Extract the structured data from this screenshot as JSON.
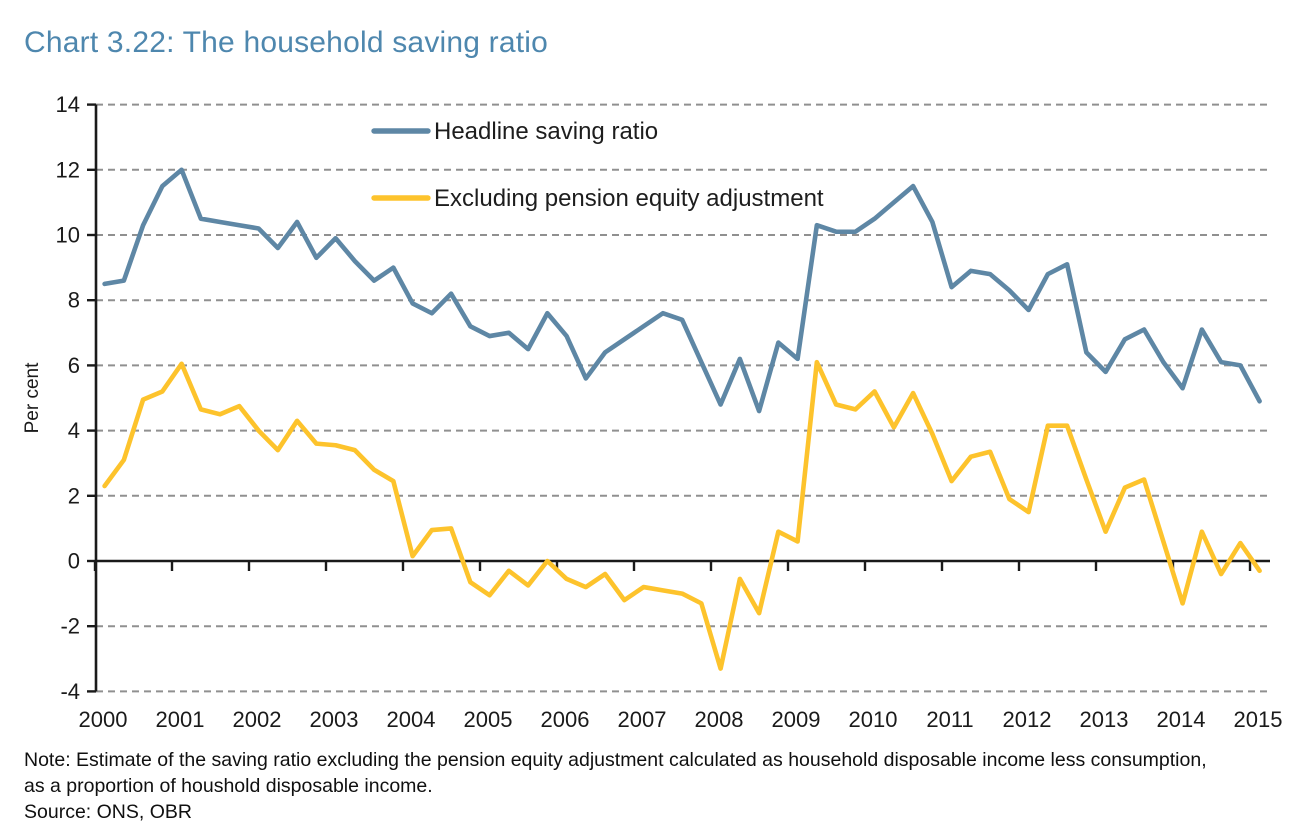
{
  "page": {
    "title": "Chart 3.22: The household saving ratio",
    "note": "Note: Estimate of the saving ratio excluding the pension equity adjustment calculated as household disposable income less consumption, as a proportion of houshold disposable income.",
    "source": "Source: ONS, OBR"
  },
  "chart_data": {
    "type": "line",
    "title": "Chart 3.22: The household saving ratio",
    "xlabel": "",
    "ylabel": "Per cent",
    "ylim": [
      -4,
      14
    ],
    "y_ticks": [
      14,
      12,
      10,
      8,
      6,
      4,
      2,
      0,
      -2,
      -4
    ],
    "x_tick_labels": [
      "2000",
      "2001",
      "2002",
      "2003",
      "2004",
      "2005",
      "2006",
      "2007",
      "2008",
      "2009",
      "2010",
      "2011",
      "2012",
      "2013",
      "2014",
      "2015"
    ],
    "x_frequency": "quarterly",
    "x_range": [
      "2000Q1",
      "2015Q1"
    ],
    "grid": "horizontal dashed, solid zero line",
    "legend_position": "top inside",
    "colors": {
      "headline": "#5E87A5",
      "excluding": "#FDC32C",
      "axis": "#1a1a1a",
      "gridline": "#909090",
      "title": "#4e87ae"
    },
    "series": [
      {
        "name": "Headline saving ratio",
        "color": "#5E87A5",
        "values": [
          8.5,
          8.6,
          10.3,
          11.5,
          12.0,
          10.5,
          10.4,
          10.3,
          10.2,
          9.6,
          10.4,
          9.3,
          9.9,
          9.2,
          8.6,
          9.0,
          7.9,
          7.6,
          8.2,
          7.2,
          6.9,
          7.0,
          6.5,
          7.6,
          6.9,
          5.6,
          6.4,
          6.8,
          7.2,
          7.6,
          7.4,
          6.1,
          4.8,
          6.2,
          4.6,
          6.7,
          6.2,
          10.3,
          10.1,
          10.1,
          10.5,
          11.0,
          11.5,
          10.4,
          8.4,
          8.9,
          8.8,
          8.3,
          7.7,
          8.8,
          9.1,
          6.4,
          5.8,
          6.8,
          7.1,
          6.1,
          5.3,
          7.1,
          6.1,
          6.0,
          4.9
        ]
      },
      {
        "name": "Excluding pension equity adjustment",
        "color": "#FDC32C",
        "values": [
          2.3,
          3.1,
          4.95,
          5.2,
          6.05,
          4.65,
          4.5,
          4.75,
          4.0,
          3.4,
          4.3,
          3.6,
          3.55,
          3.4,
          2.8,
          2.45,
          0.15,
          0.95,
          1.0,
          -0.65,
          -1.05,
          -0.3,
          -0.75,
          0.0,
          -0.55,
          -0.8,
          -0.4,
          -1.2,
          -0.8,
          -0.9,
          -1.0,
          -1.3,
          -3.3,
          -0.55,
          -1.6,
          0.9,
          0.6,
          6.1,
          4.8,
          4.65,
          5.2,
          4.1,
          5.15,
          3.9,
          2.45,
          3.2,
          3.35,
          1.9,
          1.5,
          4.15,
          4.15,
          2.5,
          0.9,
          2.25,
          2.5,
          0.6,
          -1.3,
          0.9,
          -0.4,
          0.55,
          -0.3
        ]
      }
    ]
  }
}
